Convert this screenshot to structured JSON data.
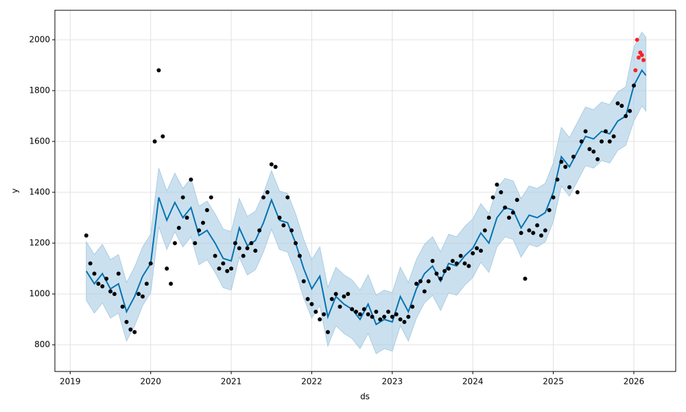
{
  "chart_data": {
    "type": "forecast",
    "x_label": "ds",
    "y_label": "y",
    "xlim": [
      2018.81,
      2026.52
    ],
    "xticks": [
      2019,
      2020,
      2021,
      2022,
      2023,
      2024,
      2025,
      2026
    ],
    "ylim": [
      695,
      2116
    ],
    "yticks": [
      800,
      1000,
      1200,
      1400,
      1600,
      1800,
      2000
    ],
    "grid": true,
    "series": [
      {
        "kind": "line-band",
        "color": "#0072B2",
        "band_color": "#a9cce3",
        "x": [
          2019.2,
          2019.3,
          2019.4,
          2019.5,
          2019.6,
          2019.7,
          2019.8,
          2019.9,
          2020.0,
          2020.1,
          2020.2,
          2020.3,
          2020.4,
          2020.5,
          2020.6,
          2020.7,
          2020.8,
          2020.9,
          2021.0,
          2021.1,
          2021.2,
          2021.3,
          2021.4,
          2021.5,
          2021.6,
          2021.7,
          2021.8,
          2021.9,
          2022.0,
          2022.1,
          2022.2,
          2022.3,
          2022.4,
          2022.5,
          2022.6,
          2022.7,
          2022.8,
          2022.9,
          2023.0,
          2023.1,
          2023.2,
          2023.3,
          2023.4,
          2023.5,
          2023.6,
          2023.7,
          2023.8,
          2023.9,
          2024.0,
          2024.1,
          2024.2,
          2024.3,
          2024.4,
          2024.5,
          2024.6,
          2024.7,
          2024.8,
          2024.9,
          2025.0,
          2025.1,
          2025.2,
          2025.3,
          2025.4,
          2025.5,
          2025.6,
          2025.7,
          2025.8,
          2025.9,
          2026.0,
          2026.1,
          2026.15
        ],
        "values": [
          1090,
          1040,
          1080,
          1020,
          1040,
          930,
          990,
          1070,
          1120,
          1380,
          1290,
          1360,
          1300,
          1340,
          1230,
          1250,
          1200,
          1140,
          1130,
          1260,
          1190,
          1210,
          1280,
          1370,
          1290,
          1280,
          1200,
          1100,
          1020,
          1070,
          910,
          990,
          960,
          940,
          900,
          960,
          880,
          900,
          890,
          990,
          930,
          1020,
          1080,
          1110,
          1050,
          1120,
          1110,
          1150,
          1180,
          1240,
          1200,
          1300,
          1340,
          1330,
          1260,
          1310,
          1300,
          1320,
          1400,
          1540,
          1500,
          1560,
          1620,
          1610,
          1640,
          1630,
          1680,
          1700,
          1820,
          1880,
          1860
        ],
        "lower": [
          975,
          925,
          965,
          905,
          925,
          815,
          875,
          955,
          1005,
          1265,
          1175,
          1245,
          1185,
          1225,
          1115,
          1135,
          1085,
          1025,
          1015,
          1145,
          1075,
          1095,
          1165,
          1255,
          1175,
          1165,
          1085,
          985,
          905,
          955,
          795,
          875,
          845,
          825,
          785,
          845,
          765,
          785,
          775,
          875,
          815,
          905,
          965,
          995,
          935,
          1005,
          995,
          1035,
          1065,
          1125,
          1085,
          1185,
          1225,
          1215,
          1145,
          1195,
          1185,
          1205,
          1285,
          1425,
          1385,
          1445,
          1505,
          1495,
          1525,
          1515,
          1565,
          1585,
          1680,
          1740,
          1720
        ],
        "upper": [
          1205,
          1155,
          1195,
          1135,
          1155,
          1045,
          1105,
          1185,
          1235,
          1495,
          1405,
          1475,
          1415,
          1455,
          1345,
          1365,
          1315,
          1255,
          1245,
          1375,
          1305,
          1325,
          1395,
          1485,
          1405,
          1395,
          1315,
          1215,
          1135,
          1185,
          1025,
          1105,
          1075,
          1055,
          1015,
          1075,
          995,
          1015,
          1005,
          1105,
          1045,
          1135,
          1195,
          1225,
          1165,
          1235,
          1225,
          1265,
          1295,
          1355,
          1315,
          1415,
          1455,
          1445,
          1375,
          1425,
          1415,
          1435,
          1515,
          1655,
          1615,
          1675,
          1735,
          1725,
          1755,
          1745,
          1795,
          1815,
          1970,
          2030,
          2010
        ]
      },
      {
        "kind": "points",
        "color": "#000000",
        "x": [
          2019.2,
          2019.25,
          2019.3,
          2019.35,
          2019.4,
          2019.45,
          2019.5,
          2019.55,
          2019.6,
          2019.65,
          2019.7,
          2019.75,
          2019.8,
          2019.85,
          2019.9,
          2019.95,
          2020.0,
          2020.05,
          2020.1,
          2020.15,
          2020.2,
          2020.25,
          2020.3,
          2020.35,
          2020.4,
          2020.45,
          2020.5,
          2020.55,
          2020.6,
          2020.65,
          2020.7,
          2020.75,
          2020.8,
          2020.85,
          2020.9,
          2020.95,
          2021.0,
          2021.05,
          2021.1,
          2021.15,
          2021.2,
          2021.25,
          2021.3,
          2021.35,
          2021.4,
          2021.45,
          2021.5,
          2021.55,
          2021.6,
          2021.65,
          2021.7,
          2021.75,
          2021.8,
          2021.85,
          2021.9,
          2021.95,
          2022.0,
          2022.05,
          2022.1,
          2022.15,
          2022.2,
          2022.25,
          2022.3,
          2022.35,
          2022.4,
          2022.45,
          2022.5,
          2022.55,
          2022.6,
          2022.65,
          2022.7,
          2022.75,
          2022.8,
          2022.85,
          2022.9,
          2022.95,
          2023.0,
          2023.05,
          2023.1,
          2023.15,
          2023.2,
          2023.25,
          2023.3,
          2023.35,
          2023.4,
          2023.45,
          2023.5,
          2023.55,
          2023.6,
          2023.65,
          2023.7,
          2023.75,
          2023.8,
          2023.85,
          2023.9,
          2023.95,
          2024.0,
          2024.05,
          2024.1,
          2024.15,
          2024.2,
          2024.25,
          2024.3,
          2024.35,
          2024.4,
          2024.45,
          2024.5,
          2024.55,
          2024.6,
          2024.65,
          2024.7,
          2024.75,
          2024.8,
          2024.85,
          2024.9,
          2024.95,
          2025.0,
          2025.05,
          2025.1,
          2025.15,
          2025.2,
          2025.25,
          2025.3,
          2025.35,
          2025.4,
          2025.45,
          2025.5,
          2025.55,
          2025.6,
          2025.65,
          2025.7,
          2025.75,
          2025.8,
          2025.85,
          2025.9,
          2025.95,
          2026.0
        ],
        "values": [
          1230,
          1120,
          1080,
          1040,
          1030,
          1060,
          1010,
          1000,
          1080,
          950,
          890,
          860,
          850,
          1000,
          990,
          1040,
          1120,
          1600,
          1880,
          1620,
          1100,
          1040,
          1200,
          1260,
          1380,
          1300,
          1450,
          1200,
          1250,
          1280,
          1330,
          1380,
          1150,
          1100,
          1120,
          1090,
          1100,
          1200,
          1180,
          1150,
          1180,
          1200,
          1170,
          1250,
          1380,
          1400,
          1510,
          1500,
          1300,
          1270,
          1380,
          1250,
          1200,
          1150,
          1050,
          980,
          960,
          930,
          900,
          920,
          850,
          980,
          1000,
          950,
          990,
          1000,
          940,
          930,
          920,
          940,
          920,
          910,
          930,
          900,
          910,
          930,
          910,
          920,
          900,
          890,
          910,
          950,
          1040,
          1050,
          1010,
          1050,
          1130,
          1080,
          1060,
          1090,
          1100,
          1130,
          1120,
          1150,
          1120,
          1110,
          1160,
          1180,
          1170,
          1250,
          1300,
          1380,
          1430,
          1400,
          1340,
          1300,
          1320,
          1370,
          1240,
          1060,
          1250,
          1240,
          1270,
          1230,
          1250,
          1330,
          1380,
          1450,
          1520,
          1500,
          1420,
          1540,
          1400,
          1600,
          1640,
          1570,
          1560,
          1530,
          1600,
          1640,
          1600,
          1620,
          1750,
          1740,
          1700,
          1720,
          1820
        ]
      },
      {
        "kind": "points",
        "color": "#ff2020",
        "x": [
          2026.02,
          2026.04,
          2026.06,
          2026.08,
          2026.1,
          2026.12
        ],
        "values": [
          1880,
          2000,
          1930,
          1950,
          1940,
          1920
        ]
      }
    ]
  }
}
